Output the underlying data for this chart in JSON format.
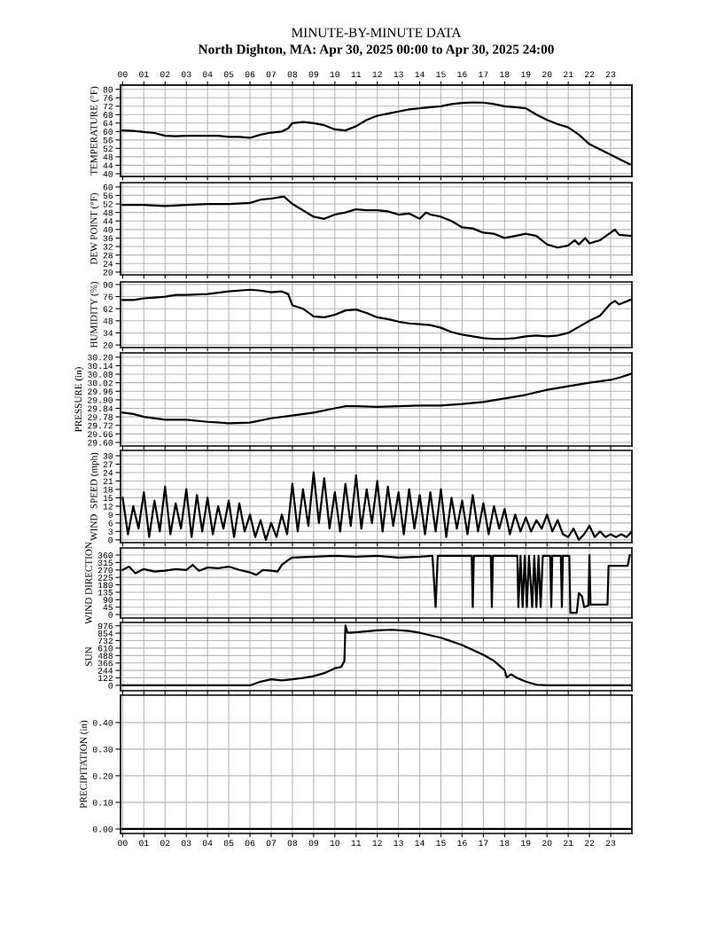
{
  "chart_data": [
    {
      "type": "line",
      "title": "MINUTE-BY-MINUTE DATA",
      "subtitle": "North Dighton, MA: Apr 30, 2025 00:00 to Apr 30, 2025 24:00",
      "ylabel": "TEMPERATURE (°F)",
      "xlim": [
        -0.1,
        24.0
      ],
      "xticks": [
        0,
        1,
        2,
        3,
        4,
        5,
        6,
        7,
        8,
        9,
        10,
        11,
        12,
        13,
        14,
        15,
        16,
        17,
        18,
        19,
        20,
        21,
        22,
        23
      ],
      "x2lim": [
        -0.1,
        24.0
      ],
      "x2ticks": [
        {
          "value": 0,
          "label": "00"
        },
        {
          "value": 1,
          "label": "01"
        },
        {
          "value": 2,
          "label": "02"
        },
        {
          "value": 3,
          "label": "03"
        },
        {
          "value": 4,
          "label": "04"
        },
        {
          "value": 5,
          "label": "05"
        },
        {
          "value": 6,
          "label": "06"
        },
        {
          "value": 7,
          "label": "07"
        },
        {
          "value": 8,
          "label": "08"
        },
        {
          "value": 9,
          "label": "09"
        },
        {
          "value": 10,
          "label": "10"
        },
        {
          "value": 11,
          "label": "11"
        },
        {
          "value": 12,
          "label": "12"
        },
        {
          "value": 13,
          "label": "13"
        },
        {
          "value": 14,
          "label": "14"
        },
        {
          "value": 15,
          "label": "15"
        },
        {
          "value": 16,
          "label": "16"
        },
        {
          "value": 17,
          "label": "17"
        },
        {
          "value": 18,
          "label": "18"
        },
        {
          "value": 19,
          "label": "19"
        },
        {
          "value": 20,
          "label": "20"
        },
        {
          "value": 21,
          "label": "21"
        },
        {
          "value": 22,
          "label": "22"
        },
        {
          "value": 23,
          "label": "23"
        }
      ],
      "ylim": [
        38.7,
        82
      ],
      "yticks": [
        40,
        44,
        48,
        52,
        56,
        60,
        64,
        68,
        72,
        76,
        80
      ],
      "tick_labels": "y",
      "grid": true,
      "x": [
        0,
        0.5,
        1,
        1.5,
        2,
        2.5,
        3,
        3.5,
        4,
        4.5,
        5,
        5.5,
        6,
        6.5,
        7,
        7.5,
        7.8,
        8,
        8.5,
        9,
        9.5,
        10,
        10.5,
        11,
        11.5,
        12,
        12.5,
        13,
        13.5,
        14,
        14.5,
        15,
        15.5,
        16,
        16.5,
        17,
        17.5,
        18,
        18.5,
        19,
        19.5,
        20,
        20.5,
        21,
        21.5,
        22,
        22.5,
        23,
        23.5,
        23.9
      ],
      "series": [
        {
          "color": "#000000",
          "values": [
            60.5,
            60.3,
            59.8,
            59.3,
            58,
            57.8,
            58,
            58,
            58,
            58,
            57.5,
            57.5,
            57,
            58.5,
            59.5,
            60,
            61.5,
            64,
            64.5,
            64,
            63,
            61,
            60.5,
            62.5,
            65.5,
            67.5,
            68.5,
            69.5,
            70.5,
            71,
            71.5,
            72,
            73,
            73.5,
            73.8,
            73.7,
            73,
            72,
            71.5,
            71,
            68,
            65.5,
            63.5,
            62,
            58.5,
            54,
            51.5,
            49,
            46.5,
            44.5
          ]
        }
      ]
    },
    {
      "type": "line",
      "ylabel": "DEW POINT (°F)",
      "xlim": [
        -0.1,
        24.0
      ],
      "xticks": [
        0,
        1,
        2,
        3,
        4,
        5,
        6,
        7,
        8,
        9,
        10,
        11,
        12,
        13,
        14,
        15,
        16,
        17,
        18,
        19,
        20,
        21,
        22,
        23
      ],
      "ylim": [
        18.7,
        62
      ],
      "yticks": [
        20,
        24,
        28,
        32,
        36,
        40,
        44,
        48,
        52,
        56,
        60
      ],
      "tick_labels": "y",
      "grid": true,
      "x": [
        0,
        1,
        2,
        3,
        4,
        5,
        6,
        6.5,
        7,
        7.6,
        8,
        8.5,
        9,
        9.5,
        10,
        10.5,
        11,
        11.5,
        12,
        12.5,
        13,
        13.5,
        14,
        14.3,
        14.5,
        15,
        15.5,
        16,
        16.5,
        17,
        17.5,
        18,
        18.5,
        19,
        19.5,
        20,
        20.5,
        21,
        21.3,
        21.5,
        21.8,
        22,
        22.5,
        23,
        23.2,
        23.4,
        24
      ],
      "series": [
        {
          "color": "#000000",
          "values": [
            51.5,
            51.5,
            51,
            51.5,
            52,
            52,
            52.5,
            54,
            54.5,
            55.5,
            52,
            49,
            46,
            45,
            47,
            48,
            49.5,
            49,
            49,
            48.5,
            47,
            47.5,
            45,
            48,
            47,
            46,
            44,
            41,
            40.5,
            38.5,
            38,
            36,
            37,
            38,
            37,
            33,
            31.5,
            32.5,
            35,
            33,
            36,
            33.5,
            35,
            38.5,
            40,
            37.5,
            37
          ]
        }
      ]
    },
    {
      "type": "line",
      "ylabel": "HUMIDITY (%)",
      "xlim": [
        -0.1,
        24.0
      ],
      "xticks": [
        0,
        1,
        2,
        3,
        4,
        5,
        6,
        7,
        8,
        9,
        10,
        11,
        12,
        13,
        14,
        15,
        16,
        17,
        18,
        19,
        20,
        21,
        22,
        23
      ],
      "ylim": [
        17,
        93
      ],
      "yticks": [
        20,
        34,
        48,
        62,
        76,
        90
      ],
      "tick_labels": "y",
      "grid": true,
      "x": [
        0,
        0.5,
        1,
        1.5,
        2,
        2.5,
        3,
        4,
        5,
        6,
        6.5,
        7,
        7.5,
        7.8,
        8,
        8.5,
        9,
        9.5,
        10,
        10.5,
        11,
        11.5,
        12,
        12.5,
        13,
        13.5,
        14,
        14.5,
        15,
        15.5,
        16,
        16.5,
        17,
        17.5,
        18,
        18.5,
        19,
        19.5,
        20,
        20.5,
        21,
        21.5,
        22,
        22.5,
        23,
        23.2,
        23.4,
        24
      ],
      "series": [
        {
          "color": "#000000",
          "values": [
            72,
            72,
            74,
            75,
            76,
            78,
            78,
            79,
            82,
            84,
            83,
            81,
            82,
            79,
            66,
            62,
            53,
            52,
            55,
            60,
            61,
            57,
            52,
            50,
            47,
            45,
            44,
            43,
            40,
            35,
            32,
            30,
            28,
            27,
            27,
            28,
            30,
            31,
            30,
            31,
            34,
            41,
            48,
            54,
            68,
            71,
            67,
            73
          ]
        }
      ]
    },
    {
      "type": "line",
      "ylabel": "PRESSURE (in)",
      "xlim": [
        -0.1,
        24.0
      ],
      "xticks": [
        0,
        1,
        2,
        3,
        4,
        5,
        6,
        7,
        8,
        9,
        10,
        11,
        12,
        13,
        14,
        15,
        16,
        17,
        18,
        19,
        20,
        21,
        22,
        23
      ],
      "ylim": [
        29.575,
        30.23
      ],
      "yticks": [
        {
          "value": 29.6,
          "label": "29.60"
        },
        {
          "value": 29.66,
          "label": "29.66"
        },
        {
          "value": 29.72,
          "label": "29.72"
        },
        {
          "value": 29.78,
          "label": "29.78"
        },
        {
          "value": 29.84,
          "label": "29.84"
        },
        {
          "value": 29.9,
          "label": "29.90"
        },
        {
          "value": 29.96,
          "label": "29.96"
        },
        {
          "value": 30.02,
          "label": "30.02"
        },
        {
          "value": 30.08,
          "label": "30.08"
        },
        {
          "value": 30.14,
          "label": "30.14"
        },
        {
          "value": 30.2,
          "label": "30.20"
        }
      ],
      "tick_labels": "y",
      "grid": true,
      "x": [
        0,
        0.5,
        1,
        2,
        3,
        4,
        5,
        6,
        7,
        8,
        9,
        10,
        10.5,
        11,
        12,
        13,
        14,
        15,
        16,
        17,
        18,
        19,
        20,
        21,
        22,
        23,
        23.5,
        24
      ],
      "series": [
        {
          "color": "#000000",
          "values": [
            29.81,
            29.8,
            29.78,
            29.76,
            29.76,
            29.745,
            29.735,
            29.74,
            29.77,
            29.79,
            29.81,
            29.84,
            29.855,
            29.855,
            29.85,
            29.855,
            29.86,
            29.86,
            29.87,
            29.885,
            29.91,
            29.935,
            29.97,
            29.995,
            30.02,
            30.04,
            30.06,
            30.085
          ]
        }
      ]
    },
    {
      "type": "line",
      "ylabel": "WIND  SPEED (mph)",
      "xlim": [
        -0.1,
        24.0
      ],
      "xticks": [
        0,
        1,
        2,
        3,
        4,
        5,
        6,
        7,
        8,
        9,
        10,
        11,
        12,
        13,
        14,
        15,
        16,
        17,
        18,
        19,
        20,
        21,
        22,
        23
      ],
      "ylim": [
        -1,
        31.9
      ],
      "yticks": [
        0,
        3,
        6,
        9,
        12,
        15,
        18,
        21,
        24,
        27,
        30
      ],
      "tick_labels": "y",
      "grid": true,
      "x": [
        0,
        0.25,
        0.5,
        0.75,
        1,
        1.25,
        1.5,
        1.75,
        2,
        2.25,
        2.5,
        2.75,
        3,
        3.25,
        3.5,
        3.75,
        4,
        4.25,
        4.5,
        4.75,
        5,
        5.25,
        5.5,
        5.75,
        6,
        6.25,
        6.5,
        6.75,
        7,
        7.25,
        7.5,
        7.75,
        8,
        8.25,
        8.5,
        8.75,
        9,
        9.25,
        9.5,
        9.75,
        10,
        10.25,
        10.5,
        10.75,
        11,
        11.25,
        11.5,
        11.75,
        12,
        12.25,
        12.5,
        12.75,
        13,
        13.25,
        13.5,
        13.75,
        14,
        14.25,
        14.5,
        14.75,
        15,
        15.25,
        15.5,
        15.75,
        16,
        16.25,
        16.5,
        16.75,
        17,
        17.25,
        17.5,
        17.75,
        18,
        18.25,
        18.5,
        18.75,
        19,
        19.25,
        19.5,
        19.75,
        20,
        20.25,
        20.5,
        20.75,
        21,
        21.25,
        21.5,
        21.75,
        22,
        22.25,
        22.5,
        22.75,
        23,
        23.25,
        23.5,
        23.75,
        24
      ],
      "series": [
        {
          "color": "#000000",
          "values": [
            15,
            2,
            12,
            4,
            17,
            1,
            14,
            3,
            19,
            2,
            13,
            4,
            18,
            1,
            16,
            3,
            15,
            2,
            12,
            4,
            14,
            1,
            13,
            3,
            9,
            1,
            7,
            0,
            6,
            1,
            9,
            2,
            20,
            3,
            18,
            5,
            24,
            6,
            22,
            4,
            17,
            3,
            20,
            5,
            23,
            4,
            18,
            6,
            21,
            3,
            19,
            5,
            17,
            2,
            18,
            4,
            16,
            2,
            17,
            3,
            18,
            1,
            15,
            4,
            14,
            2,
            16,
            3,
            13,
            2,
            12,
            4,
            11,
            2,
            9,
            3,
            8,
            3,
            7,
            4,
            9,
            3,
            7,
            2,
            1,
            4,
            0,
            2,
            5,
            1,
            3,
            1,
            2,
            1,
            2,
            1,
            3
          ]
        }
      ]
    },
    {
      "type": "line",
      "ylabel": "WIND DIRECTION",
      "xlim": [
        -0.1,
        24.0
      ],
      "xticks": [
        0,
        1,
        2,
        3,
        4,
        5,
        6,
        7,
        8,
        9,
        10,
        11,
        12,
        13,
        14,
        15,
        16,
        17,
        18,
        19,
        20,
        21,
        22,
        23
      ],
      "ylim": [
        -21,
        403
      ],
      "yticks": [
        0,
        45,
        90,
        135,
        180,
        225,
        270,
        315,
        360
      ],
      "tick_labels": "y",
      "grid": true,
      "x": [
        0,
        0.3,
        0.6,
        1,
        1.5,
        2,
        2.5,
        3,
        3.3,
        3.6,
        4,
        4.5,
        5,
        5.5,
        6,
        6.3,
        6.6,
        7,
        7.3,
        7.5,
        7.8,
        8,
        9,
        10,
        11,
        12,
        13,
        14,
        14.6,
        14.75,
        14.85,
        15.5,
        16.45,
        16.5,
        16.55,
        17.35,
        17.4,
        17.45,
        18.6,
        18.65,
        18.75,
        18.85,
        18.95,
        19.05,
        19.15,
        19.3,
        19.4,
        19.5,
        19.6,
        19.7,
        19.8,
        20.15,
        20.2,
        20.25,
        20.65,
        20.7,
        20.75,
        21.05,
        21.1,
        21.4,
        21.5,
        21.65,
        21.75,
        21.95,
        22.0,
        22.05,
        22.85,
        22.9,
        23.8,
        23.9
      ],
      "series": [
        {
          "color": "#000000",
          "values": [
            270,
            290,
            250,
            275,
            260,
            265,
            275,
            270,
            300,
            265,
            285,
            280,
            290,
            270,
            255,
            240,
            270,
            265,
            260,
            300,
            330,
            345,
            350,
            355,
            350,
            355,
            345,
            350,
            355,
            45,
            355,
            355,
            355,
            45,
            355,
            355,
            45,
            355,
            355,
            45,
            355,
            45,
            355,
            45,
            355,
            45,
            355,
            45,
            355,
            45,
            355,
            355,
            45,
            355,
            355,
            45,
            355,
            355,
            10,
            10,
            130,
            110,
            45,
            55,
            360,
            60,
            60,
            295,
            295,
            360
          ]
        }
      ]
    },
    {
      "type": "line",
      "ylabel": "SUN",
      "xlim": [
        -0.1,
        24.0
      ],
      "xticks": [
        0,
        1,
        2,
        3,
        4,
        5,
        6,
        7,
        8,
        9,
        10,
        11,
        12,
        13,
        14,
        15,
        16,
        17,
        18,
        19,
        20,
        21,
        22,
        23
      ],
      "ylim": [
        -88,
        1030
      ],
      "yticks": [
        0,
        122,
        244,
        366,
        488,
        610,
        732,
        854,
        976
      ],
      "tick_labels": "y",
      "grid": true,
      "x": [
        0,
        6,
        6.5,
        7,
        7.5,
        8,
        8.5,
        9,
        9.5,
        10,
        10.3,
        10.45,
        10.5,
        10.6,
        11,
        12,
        12.7,
        13.5,
        14,
        15,
        16,
        17,
        17.5,
        18,
        18.1,
        18.3,
        18.6,
        19,
        19.5,
        20,
        24
      ],
      "series": [
        {
          "color": "#000000",
          "values": [
            0,
            0,
            60,
            100,
            80,
            100,
            120,
            150,
            200,
            280,
            300,
            400,
            980,
            860,
            870,
            900,
            910,
            890,
            860,
            780,
            660,
            500,
            400,
            250,
            130,
            180,
            120,
            60,
            10,
            0,
            0
          ]
        }
      ]
    },
    {
      "type": "line",
      "ylabel": "PRECIPITATION (in)",
      "xlim": [
        -0.1,
        24.0
      ],
      "xticks": [
        {
          "value": 0,
          "label": "00"
        },
        {
          "value": 1,
          "label": "01"
        },
        {
          "value": 2,
          "label": "02"
        },
        {
          "value": 3,
          "label": "03"
        },
        {
          "value": 4,
          "label": "04"
        },
        {
          "value": 5,
          "label": "05"
        },
        {
          "value": 6,
          "label": "06"
        },
        {
          "value": 7,
          "label": "07"
        },
        {
          "value": 8,
          "label": "08"
        },
        {
          "value": 9,
          "label": "09"
        },
        {
          "value": 10,
          "label": "10"
        },
        {
          "value": 11,
          "label": "11"
        },
        {
          "value": 12,
          "label": "12"
        },
        {
          "value": 13,
          "label": "13"
        },
        {
          "value": 14,
          "label": "14"
        },
        {
          "value": 15,
          "label": "15"
        },
        {
          "value": 16,
          "label": "16"
        },
        {
          "value": 17,
          "label": "17"
        },
        {
          "value": 18,
          "label": "18"
        },
        {
          "value": 19,
          "label": "19"
        },
        {
          "value": 20,
          "label": "20"
        },
        {
          "value": 21,
          "label": "21"
        },
        {
          "value": 22,
          "label": "22"
        },
        {
          "value": 23,
          "label": "23"
        }
      ],
      "ylim": [
        -0.017,
        0.503
      ],
      "yticks": [
        {
          "value": 0,
          "label": "0.00"
        },
        {
          "value": 0.1,
          "label": "0.10"
        },
        {
          "value": 0.2,
          "label": "0.20"
        },
        {
          "value": 0.3,
          "label": "0.30"
        },
        {
          "value": 0.4,
          "label": "0.40"
        }
      ],
      "grid": true,
      "x": [
        0,
        24
      ],
      "series": [
        {
          "color": "#000000",
          "values": [
            0,
            0
          ]
        }
      ]
    }
  ]
}
